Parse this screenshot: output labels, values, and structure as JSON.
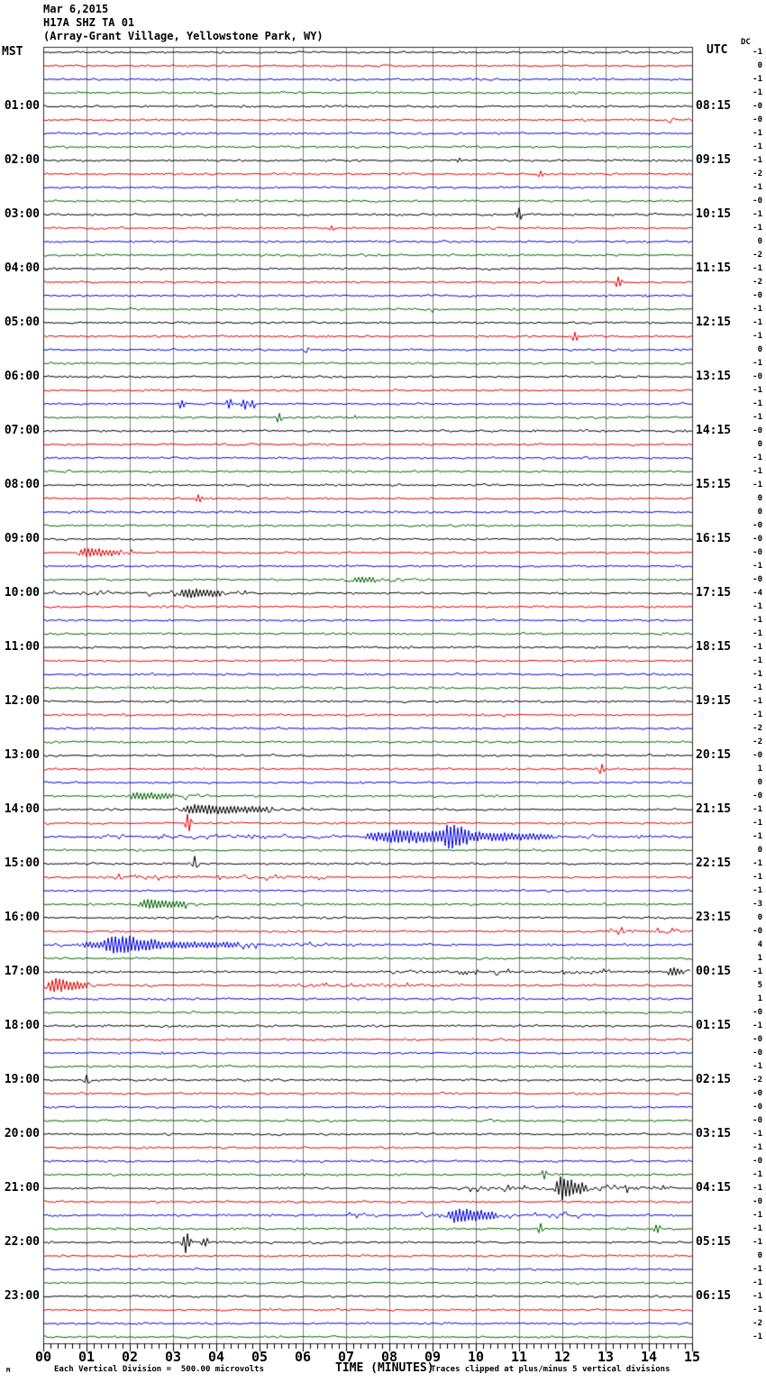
{
  "header": {
    "date": "Mar 6,2015",
    "station_line": "H17A SHZ TA 01",
    "location_line": "(Array-Grant Village, Yellowstone Park, WY)"
  },
  "axes": {
    "left_label": "MST",
    "right_label": "UTC",
    "dc_label": "DC",
    "left_hour_labels": [
      "01:00",
      "02:00",
      "03:00",
      "04:00",
      "05:00",
      "06:00",
      "07:00",
      "08:00",
      "09:00",
      "10:00",
      "11:00",
      "12:00",
      "13:00",
      "14:00",
      "15:00",
      "16:00",
      "17:00",
      "18:00",
      "19:00",
      "20:00",
      "21:00",
      "22:00",
      "23:00"
    ],
    "right_hour_labels": [
      "08:15",
      "09:15",
      "10:15",
      "11:15",
      "12:15",
      "13:15",
      "14:15",
      "15:15",
      "16:15",
      "17:15",
      "18:15",
      "19:15",
      "20:15",
      "21:15",
      "22:15",
      "23:15",
      "00:15",
      "01:15",
      "02:15",
      "03:15",
      "04:15",
      "05:15",
      "06:15"
    ],
    "x_tick_labels": [
      "00",
      "01",
      "02",
      "03",
      "04",
      "05",
      "06",
      "07",
      "08",
      "09",
      "10",
      "11",
      "12",
      "13",
      "14",
      "15"
    ]
  },
  "footer": {
    "scale_note": "Each Vertical Division =  500.00 microvolts",
    "x_title": "TIME (MINUTES)",
    "clip_note": "Traces clipped at plus/minus 5 vertical divisions",
    "corner_mark": "M"
  },
  "chart_data": {
    "type": "line",
    "subtype": "seismogram-helicorder",
    "title": "H17A SHZ TA 01 (Array-Grant Village, Yellowstone Park, WY)",
    "date": "Mar 6,2015",
    "rows": 96,
    "minutes_per_row": 15,
    "x_range": [
      0,
      15
    ],
    "xlabel": "TIME (MINUTES)",
    "grid": true,
    "grid_color": "#808080",
    "color_cycle": [
      "#000000",
      "#e40000",
      "#0000e4",
      "#006600"
    ],
    "base_noise_amp": 0.9,
    "clip_divisions": 5,
    "microvolts_per_division": "500.00",
    "dc_values": [
      "-1",
      "0",
      "-1",
      "-1",
      "-0",
      "-0",
      "-1",
      "-1",
      "-1",
      "-2",
      "-1",
      "-0",
      "-1",
      "-1",
      "0",
      "-2",
      "-1",
      "-2",
      "-0",
      "-1",
      "-1",
      "-1",
      "0",
      "-1",
      "-0",
      "-1",
      "-1",
      "-1",
      "-0",
      "0",
      "-1",
      "-1",
      "-1",
      "0",
      "0",
      "-0",
      "-0",
      "-0",
      "-1",
      "-0",
      "-4",
      "-1",
      "-1",
      "-1",
      "-1",
      "-1",
      "-1",
      "-1",
      "-1",
      "-1",
      "-2",
      "-2",
      "-0",
      "1",
      "0",
      "-0",
      "-1",
      "-1",
      "-1",
      "0",
      "-1",
      "-1",
      "-1",
      "-3",
      "0",
      "-0",
      "4",
      "1",
      "-1",
      "5",
      "1",
      "-0",
      "-1",
      "-0",
      "-0",
      "-1",
      "-2",
      "-0",
      "-0",
      "-0",
      "-1",
      "-1",
      "-0",
      "-1",
      "-1",
      "-0",
      "-1",
      "-1",
      "-1",
      "0",
      "-1",
      "-1",
      "-1",
      "-1",
      "-2",
      "-1"
    ],
    "events": [
      {
        "row": 5,
        "kind": "spike",
        "center": 14.5,
        "amp": 2
      },
      {
        "row": 8,
        "kind": "spike",
        "center": 9.6,
        "amp": 2
      },
      {
        "row": 9,
        "kind": "spike",
        "center": 11.5,
        "amp": 3
      },
      {
        "row": 12,
        "kind": "spike",
        "center": 11.0,
        "amp": 5
      },
      {
        "row": 13,
        "kind": "spike",
        "center": 6.7,
        "amp": 2
      },
      {
        "row": 17,
        "kind": "spike",
        "center": 13.3,
        "amp": 6
      },
      {
        "row": 19,
        "kind": "spike",
        "center": 9.0,
        "amp": 2
      },
      {
        "row": 21,
        "kind": "spike",
        "center": 12.3,
        "amp": 5
      },
      {
        "row": 22,
        "kind": "spike",
        "center": 6.1,
        "amp": 2
      },
      {
        "row": 26,
        "kind": "spike",
        "center": 3.2,
        "amp": 4
      },
      {
        "row": 26,
        "kind": "spike",
        "center": 4.3,
        "amp": 4
      },
      {
        "row": 26,
        "kind": "spike",
        "center": 4.65,
        "amp": 5
      },
      {
        "row": 26,
        "kind": "spike",
        "center": 4.85,
        "amp": 4
      },
      {
        "row": 27,
        "kind": "spike",
        "center": 5.45,
        "amp": 4
      },
      {
        "row": 27,
        "kind": "spike",
        "center": 7.2,
        "amp": 2
      },
      {
        "row": 33,
        "kind": "spike",
        "center": 3.6,
        "amp": 4
      },
      {
        "row": 37,
        "kind": "burst",
        "start": 0.7,
        "end": 2.3,
        "amp": 5
      },
      {
        "row": 39,
        "kind": "burst",
        "start": 6.9,
        "end": 8.8,
        "amp": 3
      },
      {
        "row": 40,
        "kind": "hum",
        "start": 0.2,
        "end": 5.2,
        "amp": 3
      },
      {
        "row": 40,
        "kind": "burst",
        "start": 3.1,
        "end": 4.3,
        "amp": 4
      },
      {
        "row": 53,
        "kind": "spike",
        "center": 12.9,
        "amp": 4
      },
      {
        "row": 55,
        "kind": "burst",
        "start": 1.8,
        "end": 3.9,
        "amp": 4
      },
      {
        "row": 56,
        "kind": "burst",
        "start": 2.9,
        "end": 6.3,
        "amp": 5
      },
      {
        "row": 57,
        "kind": "spike",
        "center": 3.35,
        "amp": 7
      },
      {
        "row": 58,
        "kind": "hum",
        "start": 0,
        "end": 15,
        "amp": 2
      },
      {
        "row": 58,
        "kind": "burst",
        "start": 7.2,
        "end": 12.5,
        "amp": 6
      },
      {
        "row": 58,
        "kind": "burst",
        "start": 9.2,
        "end": 9.9,
        "amp": 13
      },
      {
        "row": 60,
        "kind": "spike",
        "center": 3.5,
        "amp": 5
      },
      {
        "row": 61,
        "kind": "hum",
        "start": 1.5,
        "end": 6.5,
        "amp": 3
      },
      {
        "row": 63,
        "kind": "burst",
        "start": 2.05,
        "end": 3.85,
        "amp": 5
      },
      {
        "row": 65,
        "kind": "hum",
        "start": 13.0,
        "end": 15,
        "amp": 4
      },
      {
        "row": 66,
        "kind": "burst",
        "start": 0.2,
        "end": 7.5,
        "amp": 4
      },
      {
        "row": 66,
        "kind": "burst",
        "start": 1.4,
        "end": 2.8,
        "amp": 8
      },
      {
        "row": 68,
        "kind": "hum",
        "start": 8.0,
        "end": 13.4,
        "amp": 3
      },
      {
        "row": 68,
        "kind": "burst",
        "start": 14.4,
        "end": 15,
        "amp": 5
      },
      {
        "row": 69,
        "kind": "burst",
        "start": 0.0,
        "end": 1.3,
        "amp": 8
      },
      {
        "row": 69,
        "kind": "hum",
        "start": 5.5,
        "end": 9.8,
        "amp": 2
      },
      {
        "row": 76,
        "kind": "spike",
        "center": 1.0,
        "amp": 3
      },
      {
        "row": 83,
        "kind": "spike",
        "center": 11.6,
        "amp": 3
      },
      {
        "row": 84,
        "kind": "hum",
        "start": 9.7,
        "end": 14.6,
        "amp": 5
      },
      {
        "row": 84,
        "kind": "burst",
        "start": 11.8,
        "end": 12.6,
        "amp": 11
      },
      {
        "row": 86,
        "kind": "hum",
        "start": 7.0,
        "end": 12.8,
        "amp": 3
      },
      {
        "row": 86,
        "kind": "burst",
        "start": 9.3,
        "end": 10.6,
        "amp": 7
      },
      {
        "row": 87,
        "kind": "spike",
        "center": 11.5,
        "amp": 4
      },
      {
        "row": 87,
        "kind": "spike",
        "center": 14.2,
        "amp": 4
      },
      {
        "row": 88,
        "kind": "spike",
        "center": 3.3,
        "amp": 10
      },
      {
        "row": 88,
        "kind": "spike",
        "center": 3.75,
        "amp": 4
      }
    ]
  }
}
